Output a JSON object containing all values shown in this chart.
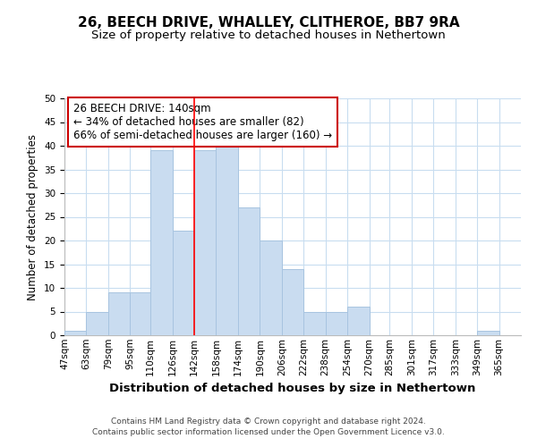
{
  "title": "26, BEECH DRIVE, WHALLEY, CLITHEROE, BB7 9RA",
  "subtitle": "Size of property relative to detached houses in Nethertown",
  "xlabel": "Distribution of detached houses by size in Nethertown",
  "ylabel": "Number of detached properties",
  "footer1": "Contains HM Land Registry data © Crown copyright and database right 2024.",
  "footer2": "Contains public sector information licensed under the Open Government Licence v3.0.",
  "bin_labels": [
    "47sqm",
    "63sqm",
    "79sqm",
    "95sqm",
    "110sqm",
    "126sqm",
    "142sqm",
    "158sqm",
    "174sqm",
    "190sqm",
    "206sqm",
    "222sqm",
    "238sqm",
    "254sqm",
    "270sqm",
    "285sqm",
    "301sqm",
    "317sqm",
    "333sqm",
    "349sqm",
    "365sqm"
  ],
  "bin_edges": [
    47,
    63,
    79,
    95,
    110,
    126,
    142,
    158,
    174,
    190,
    206,
    222,
    238,
    254,
    270,
    285,
    301,
    317,
    333,
    349,
    365,
    381
  ],
  "bar_heights": [
    1,
    5,
    9,
    9,
    39,
    22,
    39,
    41,
    27,
    20,
    14,
    5,
    5,
    6,
    0,
    0,
    0,
    0,
    0,
    1,
    0
  ],
  "bar_color": "#c9dcf0",
  "bar_edge_color": "#a8c4e0",
  "reference_line_x": 142,
  "reference_line_color": "red",
  "annotation_title": "26 BEECH DRIVE: 140sqm",
  "annotation_line1": "← 34% of detached houses are smaller (82)",
  "annotation_line2": "66% of semi-detached houses are larger (160) →",
  "annotation_box_color": "white",
  "annotation_box_edge_color": "#cc0000",
  "ylim": [
    0,
    50
  ],
  "yticks": [
    0,
    5,
    10,
    15,
    20,
    25,
    30,
    35,
    40,
    45,
    50
  ],
  "title_fontsize": 11,
  "subtitle_fontsize": 9.5,
  "xlabel_fontsize": 9.5,
  "ylabel_fontsize": 8.5,
  "tick_fontsize": 7.5,
  "annotation_fontsize": 8.5,
  "footer_fontsize": 6.5
}
